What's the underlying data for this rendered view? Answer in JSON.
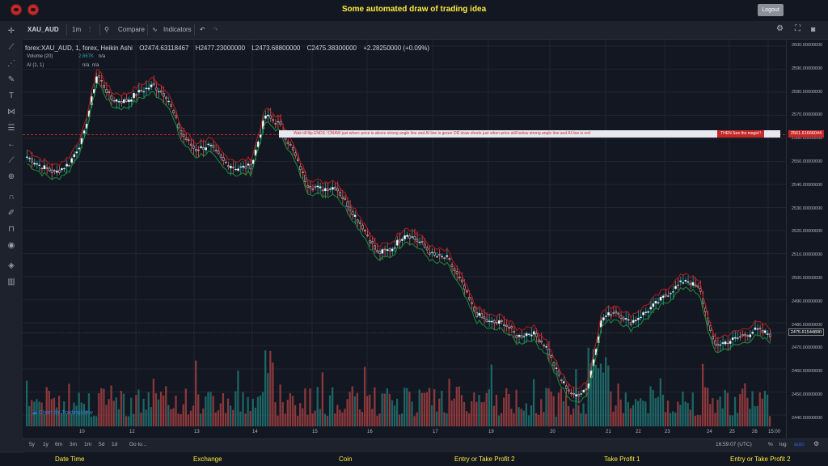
{
  "header": {
    "title": "Some automated draw of trading idea",
    "logout_label": "Logout"
  },
  "toolbar": {
    "symbol": "XAU_AUD",
    "interval": "1m",
    "compare_label": "Compare",
    "indicators_label": "Indicators"
  },
  "legend": {
    "series": "forex:XAU_AUD, 1, forex, Heikin Ashi",
    "open": "O2474.63118467",
    "high": "H2477.23000000",
    "low": "L2473.68800000",
    "close": "C2475.38300000",
    "change": "+2.28250000 (+0.09%)",
    "volume_label": "Volume (20)",
    "volume_value": "2.667K",
    "volume_na": "n/a",
    "ai_label": "AI (1, 1)",
    "ai_na1": "n/a",
    "ai_na2": "n/a"
  },
  "banner": {
    "text": "Wait till flip ENDS  !    DRAW just when:  price is above strong angle line and AI line is green          OR          draw shorts just when price still below strong angle line and AI line is red",
    "cta": "THEN See the magic!!"
  },
  "price_tags": {
    "line_price": "2561.61666044",
    "last_price": "2475.61544800"
  },
  "y_axis": [
    "2600.00000000",
    "2590.00000000",
    "2580.00000000",
    "2570.00000000",
    "2560.00000000",
    "2550.00000000",
    "2540.00000000",
    "2530.00000000",
    "2520.00000000",
    "2510.00000000",
    "2500.00000000",
    "2490.00000000",
    "2480.00000000",
    "2470.00000000",
    "2460.00000000",
    "2450.00000000",
    "2440.00000000"
  ],
  "x_axis": [
    "10",
    "12",
    "13",
    "14",
    "15",
    "16",
    "17",
    "19",
    "20",
    "21",
    "22",
    "23",
    "24",
    "25",
    "26",
    "15:00"
  ],
  "range_bar": {
    "ranges": [
      "5y",
      "1y",
      "6m",
      "3m",
      "1m",
      "5d",
      "1d"
    ],
    "goto": "Go to...",
    "time": "16:59:07 (UTC)",
    "percent": "%",
    "log": "log",
    "auto": "auto"
  },
  "watermark": "Chart by TradingView",
  "bottom_nav": [
    "Date Time",
    "Exchange",
    "Coin",
    "Entry or Take Profit 2",
    "Take Profit 1",
    "Entry or Take Profit 2"
  ],
  "colors": {
    "up": "#26a69a",
    "down": "#ef5350",
    "accent_yellow": "#ffeb3b",
    "banner_red": "#c62828"
  },
  "chart_data": {
    "type": "candlestick",
    "style": "Heikin Ashi",
    "symbol": "XAU_AUD",
    "ylim": [
      2437,
      2603
    ],
    "close_path": [
      2552,
      2548,
      2545,
      2549,
      2560,
      2588,
      2577,
      2576,
      2580,
      2583,
      2578,
      2562,
      2555,
      2557,
      2550,
      2547,
      2548,
      2570,
      2566,
      2554,
      2540,
      2538,
      2539,
      2530,
      2521,
      2510,
      2512,
      2519,
      2515,
      2509,
      2508,
      2497,
      2484,
      2480,
      2480,
      2474,
      2476,
      2470,
      2456,
      2448,
      2452,
      2482,
      2485,
      2480,
      2484,
      2489,
      2494,
      2499,
      2494,
      2470,
      2472,
      2474,
      2477,
      2475
    ],
    "volume_peak_hint": "spikes near days 13-14 and 21-22"
  }
}
